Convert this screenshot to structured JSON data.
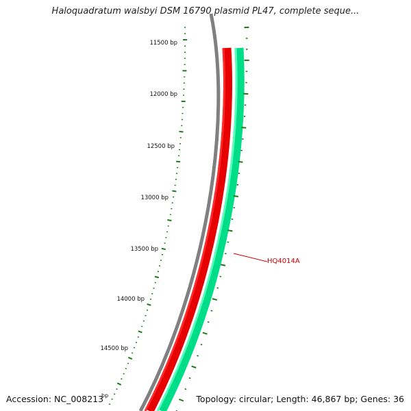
{
  "title": "Haloquadratum walsbyi DSM 16790 plasmid PL47, complete seque...",
  "accession": "Accession: NC_008213",
  "summary": "Topology: circular; Length: 46,867 bp; Genes: 36",
  "ruler": {
    "labels": [
      "11500 bp",
      "12000 bp",
      "12500 bp",
      "13000 bp",
      "13500 bp",
      "14000 bp",
      "14500 bp"
    ],
    "clipped_label": "bp"
  },
  "features": [
    {
      "label": "HQ4014A",
      "strand": "reverse",
      "color": "#dd0000"
    }
  ],
  "colors": {
    "backbone": "#888888",
    "reverse_track": "#ff0000",
    "forward_track": "#00ee99",
    "ticks": "#1a7a1a",
    "feature_label": "#cc0000"
  }
}
